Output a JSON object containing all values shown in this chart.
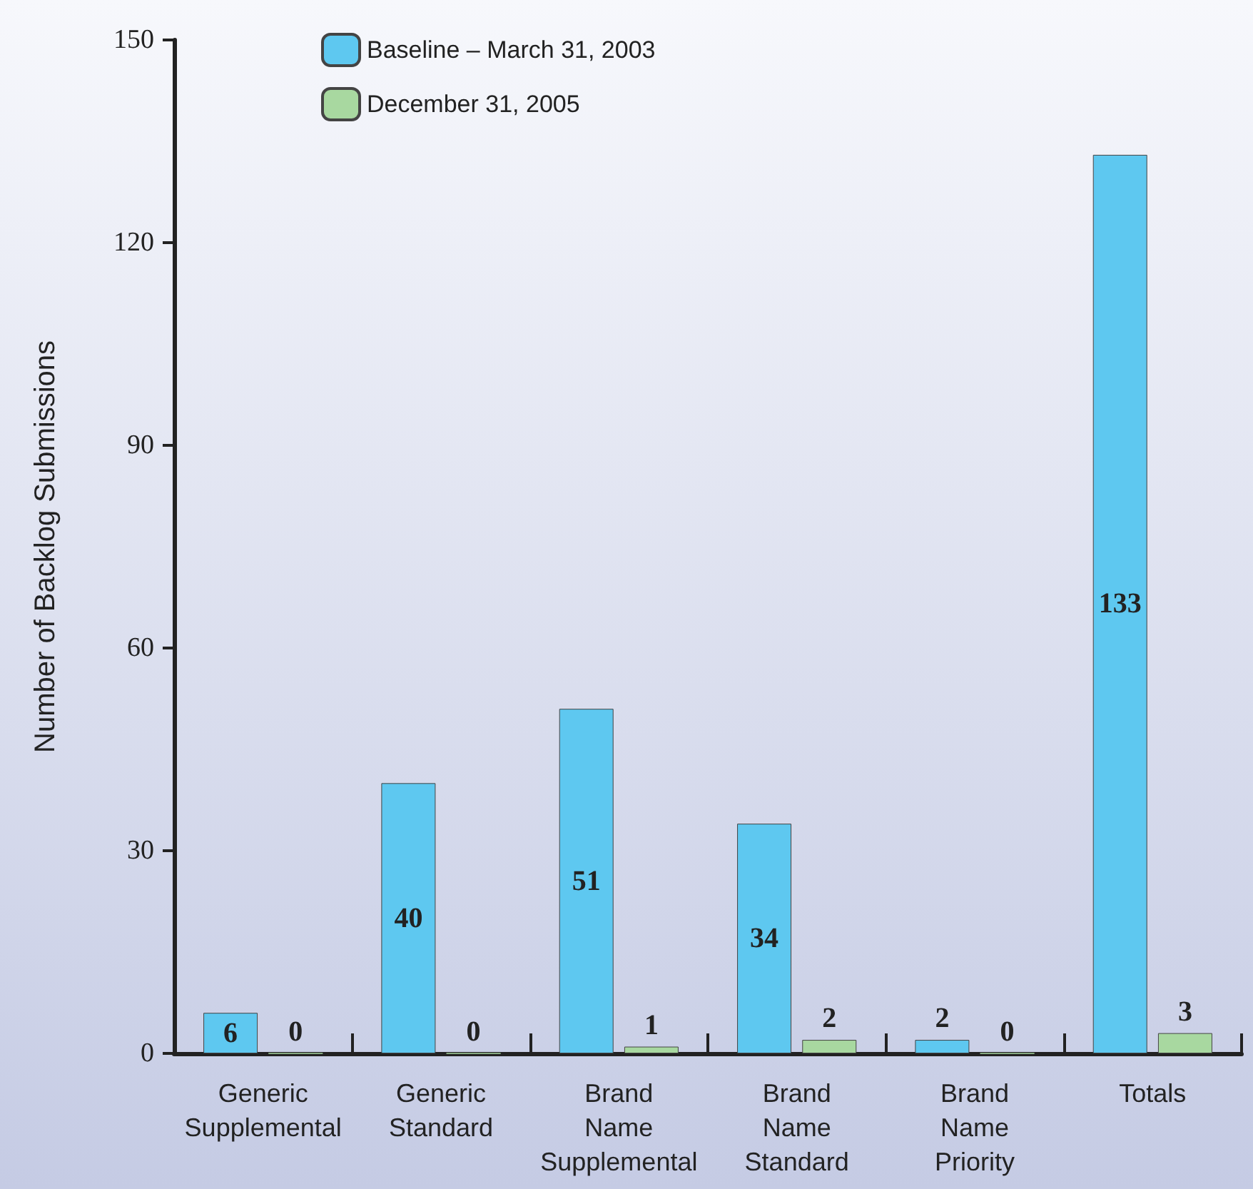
{
  "chart_data": {
    "type": "bar",
    "ylabel": "Number of Backlog Submissions",
    "categories": [
      "Generic\nSupplemental",
      "Generic\nStandard",
      "Brand\nName\nSupplemental",
      "Brand\nName\nStandard",
      "Brand\nName\nPriority",
      "Totals"
    ],
    "series": [
      {
        "name": "Baseline – March 31, 2003",
        "color": "#5ec8f0",
        "values": [
          6,
          40,
          51,
          34,
          2,
          133
        ]
      },
      {
        "name": "December 31, 2005",
        "color": "#a8d8a0",
        "values": [
          0,
          0,
          1,
          2,
          0,
          3
        ]
      }
    ],
    "ylim": [
      0,
      150
    ],
    "yticks": [
      0,
      30,
      60,
      90,
      120,
      150
    ],
    "grid": false,
    "legend": "top",
    "data_labels": true
  }
}
